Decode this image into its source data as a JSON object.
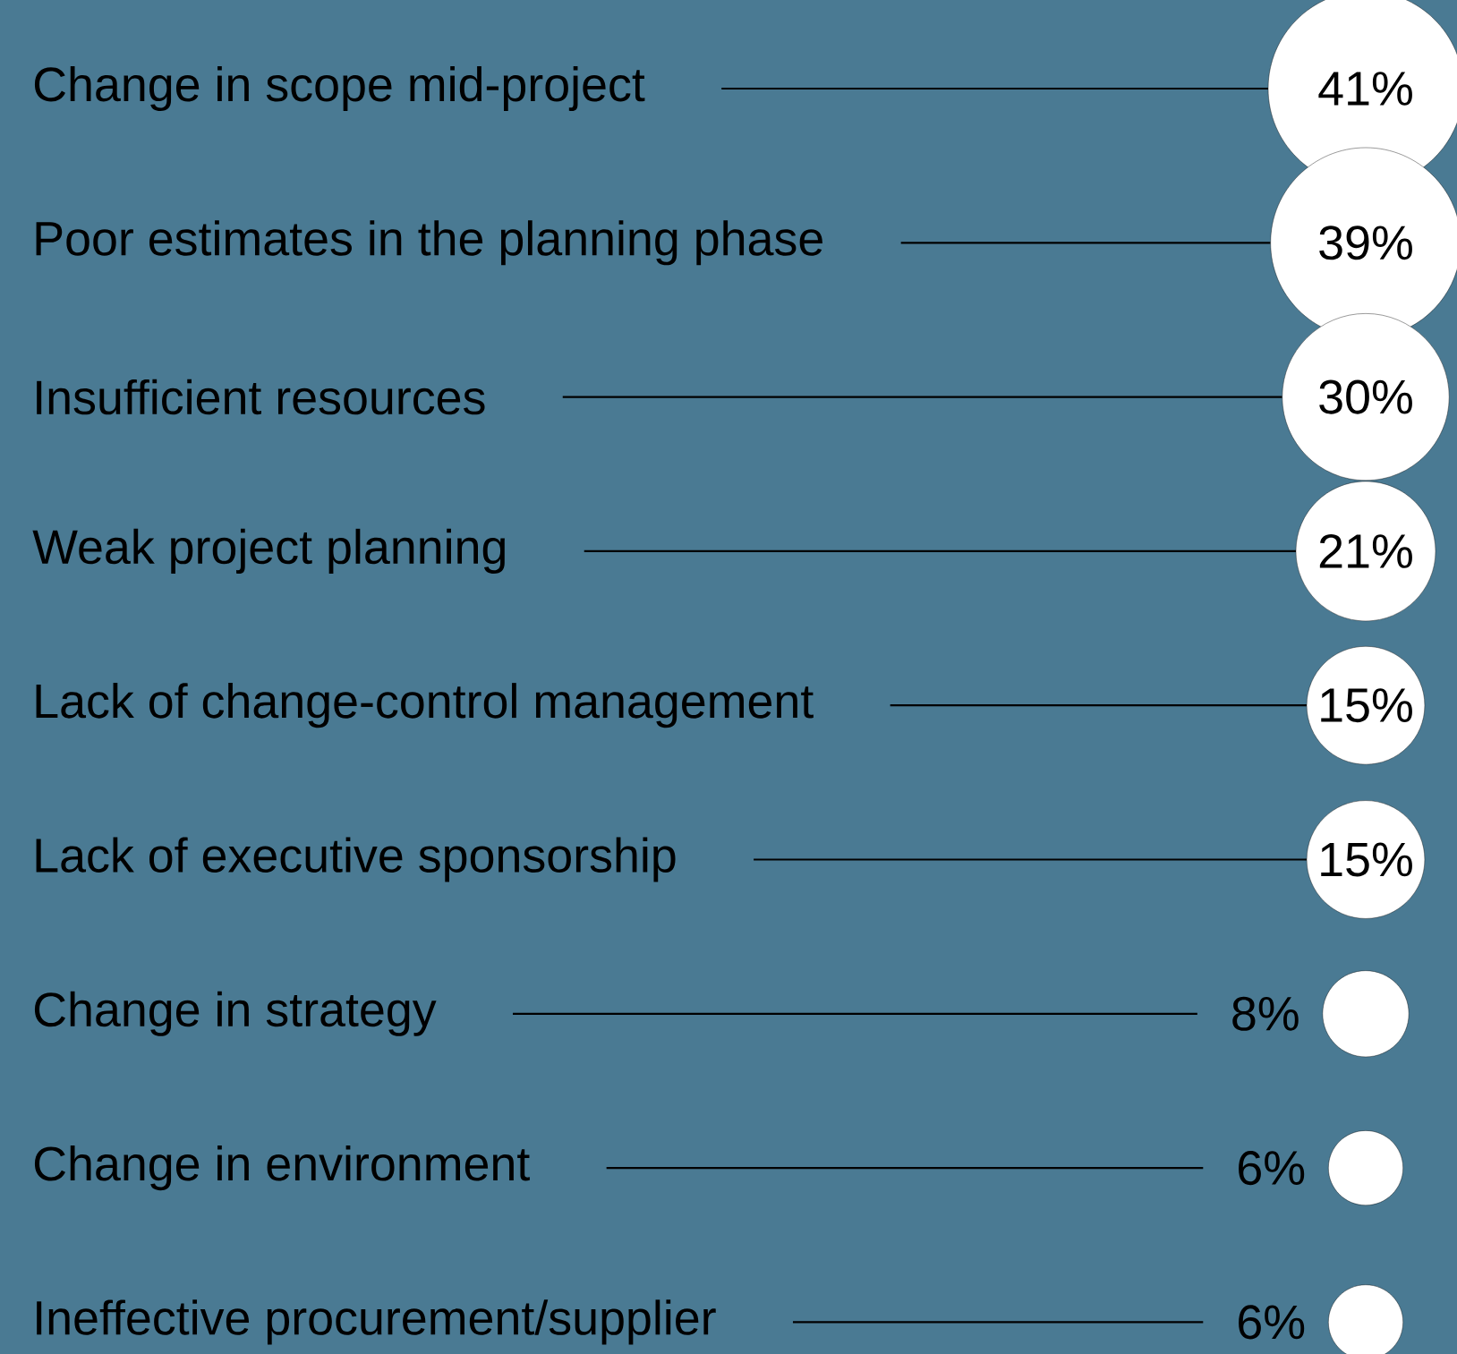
{
  "chart_data": {
    "type": "other",
    "categories": [
      "Change in scope mid-project",
      "Poor estimates in the planning phase",
      "Insufficient resources",
      "Weak project planning",
      "Lack of change-control management",
      "Lack of executive sponsorship",
      "Change in strategy",
      "Change in environment",
      "Ineffective procurement/supplier"
    ],
    "values": [
      41,
      39,
      30,
      21,
      15,
      15,
      8,
      6,
      6
    ],
    "value_labels": [
      "41%",
      "39%",
      "30%",
      "21%",
      "15%",
      "15%",
      "8%",
      "6%",
      "6%"
    ],
    "color": "#ffffff"
  }
}
